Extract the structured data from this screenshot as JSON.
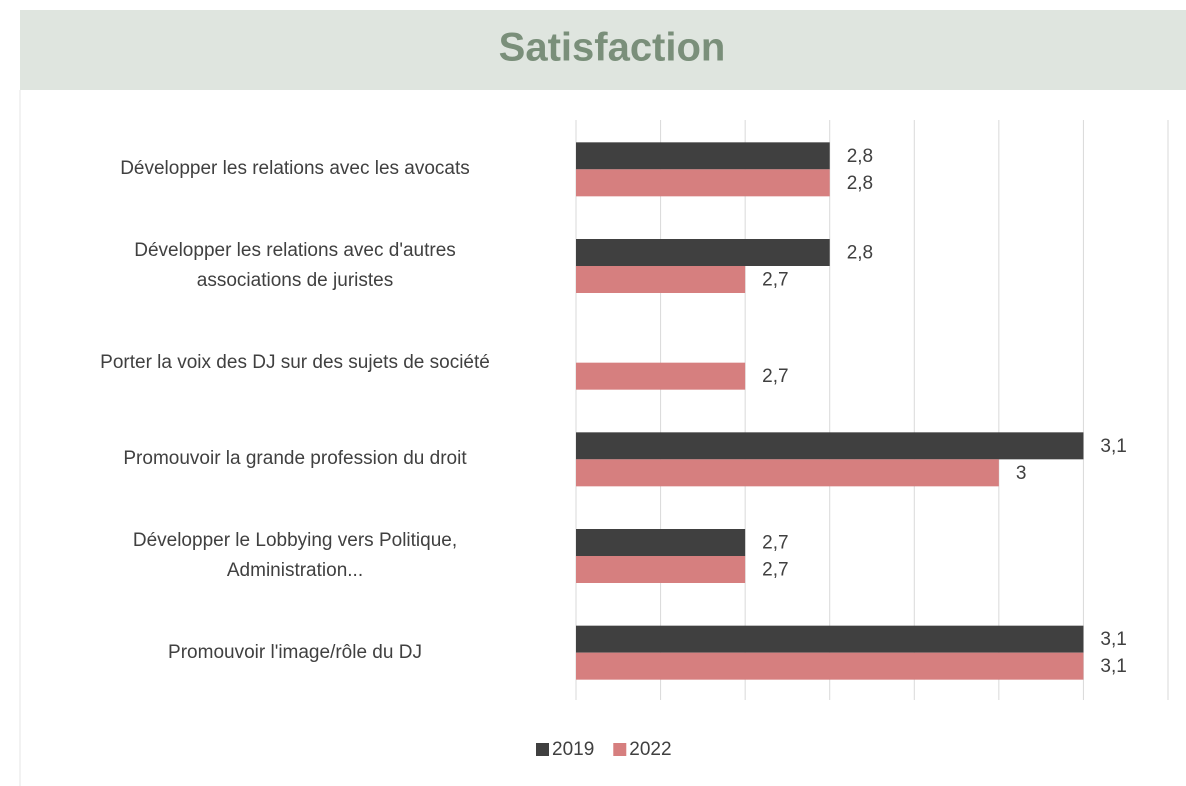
{
  "chart_data": {
    "type": "barh",
    "title": "Satisfaction",
    "categories": [
      "Développer les relations avec les avocats",
      "Développer les relations avec d'autres\nassociations de juristes",
      "Porter la voix des DJ sur des sujets de société",
      "Promouvoir la grande profession du droit",
      "Développer le Lobbying vers Politique,\nAdministration...",
      "Promouvoir l'image/rôle du DJ"
    ],
    "series": [
      {
        "name": "2019",
        "color": "#404040",
        "values": [
          2.8,
          2.8,
          null,
          3.1,
          2.7,
          3.1
        ],
        "value_labels": [
          "2,8",
          "2,8",
          null,
          "3,1",
          "2,7",
          "3,1"
        ]
      },
      {
        "name": "2022",
        "color": "#d67f7f",
        "values": [
          2.8,
          2.7,
          2.7,
          3,
          2.7,
          3.1
        ],
        "value_labels": [
          "2,8",
          "2,7",
          "2,7",
          "3",
          "2,7",
          "3,1"
        ]
      }
    ],
    "xlim": [
      2.5,
      3.2
    ],
    "xticks": [
      2.5,
      2.6,
      2.7,
      2.8,
      2.9,
      3,
      3.1,
      3.2
    ],
    "grid": true,
    "legend": "bottom"
  }
}
